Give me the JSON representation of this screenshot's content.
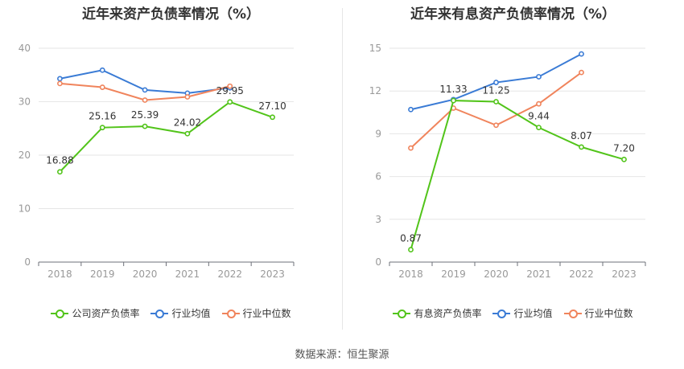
{
  "source": "数据来源：恒生聚源",
  "colors": {
    "company": "#52c41a",
    "avg": "#3a7bd5",
    "median": "#f0845c",
    "grid": "#e6e6e6",
    "axis": "#999999"
  },
  "chart_data": [
    {
      "type": "line",
      "title": "近年来资产负债率情况（%）",
      "categories": [
        "2018",
        "2019",
        "2020",
        "2021",
        "2022",
        "2023"
      ],
      "ylim": [
        0,
        40
      ],
      "yticks": [
        0,
        10,
        20,
        30,
        40
      ],
      "grid": true,
      "legend_position": "bottom",
      "series": [
        {
          "name": "公司资产负债率",
          "key": "company",
          "values": [
            16.88,
            25.16,
            25.39,
            24.02,
            29.95,
            27.1
          ],
          "labels": [
            "16.88",
            "25.16",
            "25.39",
            "24.02",
            "29.95",
            "27.10"
          ]
        },
        {
          "name": "行业均值",
          "key": "avg",
          "values": [
            34.3,
            35.9,
            32.2,
            31.6,
            32.6,
            null
          ]
        },
        {
          "name": "行业中位数",
          "key": "median",
          "values": [
            33.4,
            32.7,
            30.3,
            30.9,
            32.9,
            null
          ]
        }
      ]
    },
    {
      "type": "line",
      "title": "近年来有息资产负债率情况（%）",
      "categories": [
        "2018",
        "2019",
        "2020",
        "2021",
        "2022",
        "2023"
      ],
      "ylim": [
        0,
        15
      ],
      "yticks": [
        0,
        3,
        6,
        9,
        12,
        15
      ],
      "grid": true,
      "legend_position": "bottom",
      "series": [
        {
          "name": "有息资产负债率",
          "key": "company",
          "values": [
            0.87,
            11.33,
            11.25,
            9.44,
            8.07,
            7.2
          ],
          "labels": [
            "0.87",
            "11.33",
            "11.25",
            "9.44",
            "8.07",
            "7.20"
          ]
        },
        {
          "name": "行业均值",
          "key": "avg",
          "values": [
            10.7,
            11.4,
            12.6,
            13.0,
            14.6,
            null
          ]
        },
        {
          "name": "行业中位数",
          "key": "median",
          "values": [
            8.0,
            10.8,
            9.6,
            11.1,
            13.3,
            null
          ]
        }
      ]
    }
  ]
}
